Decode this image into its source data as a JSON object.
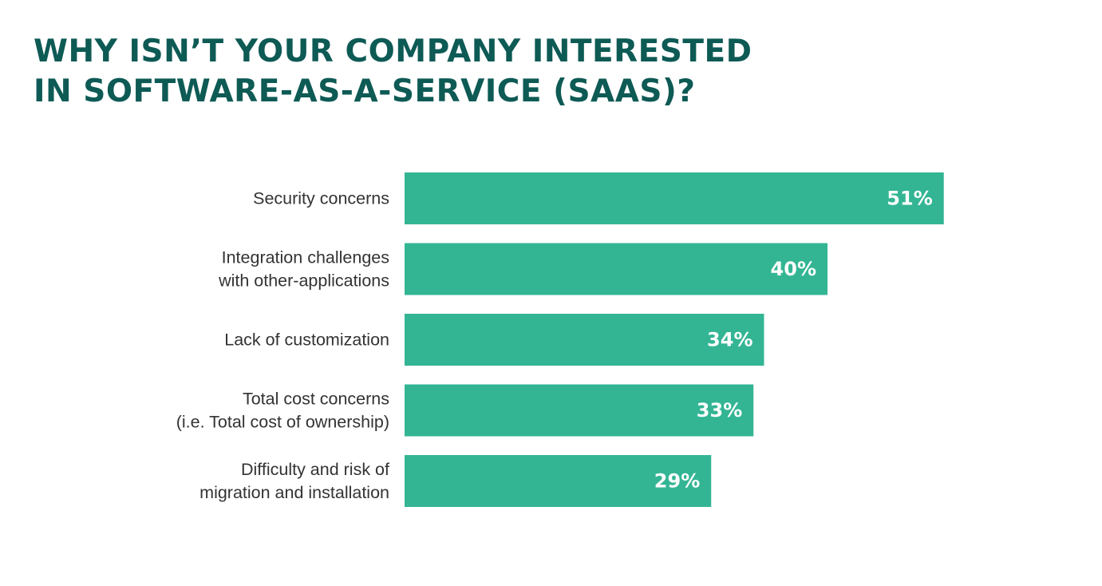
{
  "title": {
    "line1": "WHY ISN’T YOUR COMPANY INTERESTED",
    "line2": "IN SOFTWARE-AS-A-SERVICE (SAAS)?"
  },
  "colors": {
    "bar": "#33b594",
    "title": "#0e5a55",
    "label": "#333333",
    "value_text": "#ffffff"
  },
  "chart_data": {
    "type": "bar",
    "orientation": "horizontal",
    "title": "WHY ISN’T YOUR COMPANY INTERESTED IN SOFTWARE-AS-A-SERVICE (SAAS)?",
    "categories": [
      [
        "Security concerns"
      ],
      [
        "Integration challenges",
        "with other-applications"
      ],
      [
        "Lack of customization"
      ],
      [
        "Total cost concerns",
        "(i.e. Total cost of ownership)"
      ],
      [
        "Difficulty and risk of",
        "migration and installation"
      ]
    ],
    "values": [
      51,
      40,
      34,
      33,
      29
    ],
    "value_labels": [
      "51%",
      "40%",
      "34%",
      "33%",
      "29%"
    ],
    "unit": "%",
    "xlabel": "",
    "ylabel": "",
    "grid": false,
    "legend": "none"
  }
}
